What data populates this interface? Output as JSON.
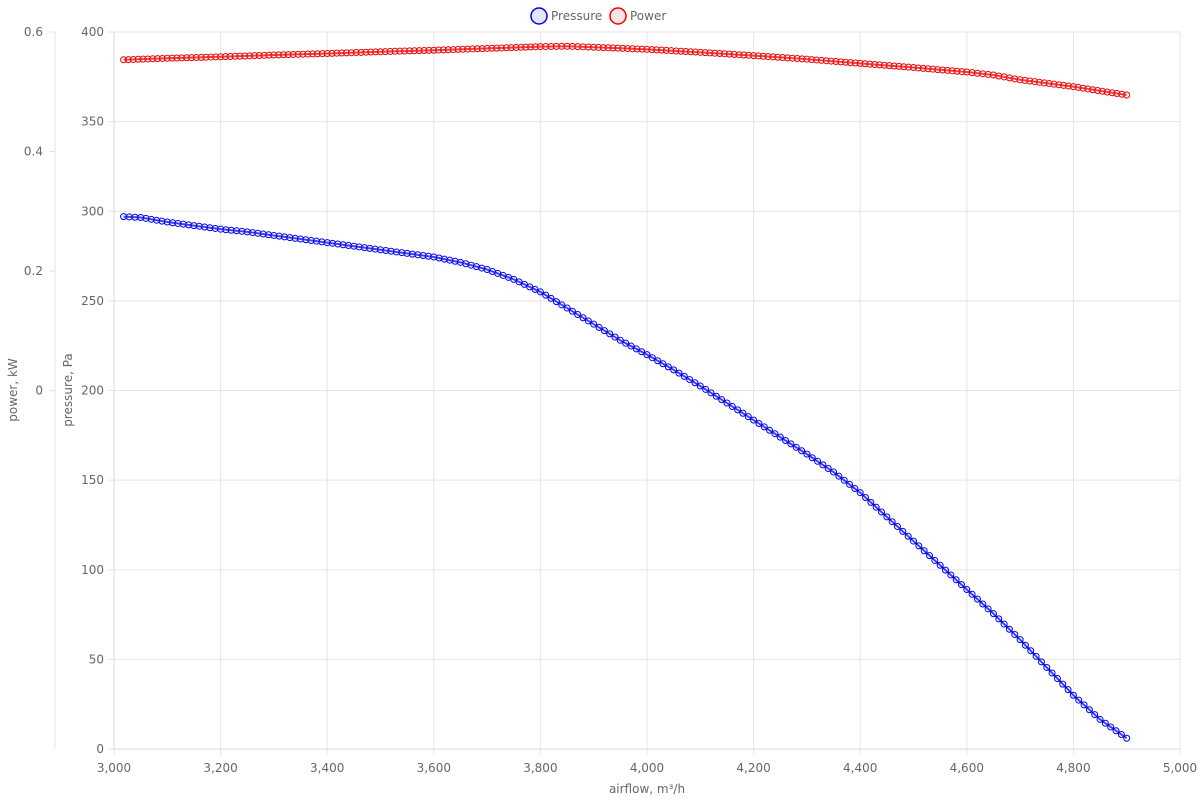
{
  "chart_data": {
    "type": "line",
    "xlabel": "airflow, m³/h",
    "ylabel_left": "power, kW",
    "ylabel_right": "pressure, Pa",
    "xlim": [
      3000,
      5000
    ],
    "x_ticks": [
      "3,000",
      "3,200",
      "3,400",
      "3,600",
      "3,800",
      "4,000",
      "4,200",
      "4,400",
      "4,600",
      "4,800",
      "5,000"
    ],
    "pressure_axis": {
      "ylim": [
        0,
        400
      ],
      "ticks": [
        "0",
        "50",
        "100",
        "150",
        "200",
        "250",
        "300",
        "350",
        "400"
      ]
    },
    "power_axis": {
      "ylim": [
        -0.6,
        0.6
      ],
      "ticks": [
        "0",
        "0.2",
        "0.4",
        "0.6"
      ]
    },
    "grid": true,
    "legend_position": "top-center",
    "series": [
      {
        "name": "Pressure",
        "axis": "pressure",
        "color": "#0000ee",
        "marker": "circle",
        "points": [
          [
            3018,
            297
          ],
          [
            3050,
            296.5
          ],
          [
            3100,
            294
          ],
          [
            3150,
            292
          ],
          [
            3200,
            290
          ],
          [
            3250,
            288.5
          ],
          [
            3300,
            286.5
          ],
          [
            3350,
            284.5
          ],
          [
            3400,
            282.5
          ],
          [
            3450,
            280.5
          ],
          [
            3500,
            278.5
          ],
          [
            3550,
            276.5
          ],
          [
            3600,
            274.5
          ],
          [
            3650,
            271.5
          ],
          [
            3700,
            267.5
          ],
          [
            3750,
            262
          ],
          [
            3800,
            255
          ],
          [
            3850,
            246
          ],
          [
            3900,
            237
          ],
          [
            3950,
            228
          ],
          [
            4000,
            220
          ],
          [
            4050,
            211.5
          ],
          [
            4100,
            202.5
          ],
          [
            4150,
            193
          ],
          [
            4200,
            183.5
          ],
          [
            4250,
            174
          ],
          [
            4300,
            164.5
          ],
          [
            4350,
            154.5
          ],
          [
            4400,
            143
          ],
          [
            4450,
            129.5
          ],
          [
            4500,
            116
          ],
          [
            4550,
            102.5
          ],
          [
            4600,
            89
          ],
          [
            4650,
            75.5
          ],
          [
            4700,
            61
          ],
          [
            4750,
            45.5
          ],
          [
            4800,
            30
          ],
          [
            4850,
            16.5
          ],
          [
            4900,
            6
          ]
        ]
      },
      {
        "name": "Power",
        "axis": "power",
        "color": "#ee0000",
        "marker": "circle",
        "points": [
          [
            3018,
            0.5535
          ],
          [
            3100,
            0.556
          ],
          [
            3200,
            0.5585
          ],
          [
            3300,
            0.5615
          ],
          [
            3400,
            0.564
          ],
          [
            3500,
            0.567
          ],
          [
            3600,
            0.5695
          ],
          [
            3700,
            0.5725
          ],
          [
            3800,
            0.5755
          ],
          [
            3850,
            0.5762
          ],
          [
            3900,
            0.5745
          ],
          [
            4000,
            0.571
          ],
          [
            4100,
            0.566
          ],
          [
            4200,
            0.5605
          ],
          [
            4300,
            0.5545
          ],
          [
            4400,
            0.5475
          ],
          [
            4500,
            0.5405
          ],
          [
            4600,
            0.533
          ],
          [
            4650,
            0.528
          ],
          [
            4700,
            0.52
          ],
          [
            4800,
            0.5085
          ],
          [
            4900,
            0.4945
          ]
        ]
      }
    ]
  }
}
